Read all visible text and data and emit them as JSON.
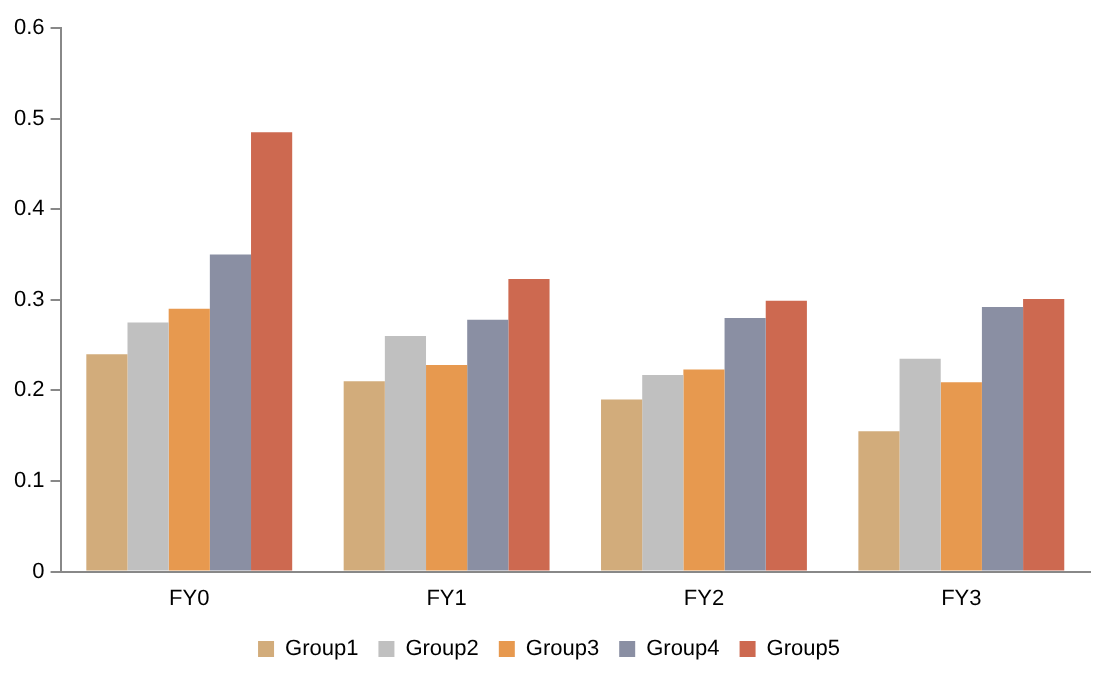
{
  "chart_data": {
    "type": "bar",
    "categories": [
      "FY0",
      "FY1",
      "FY2",
      "FY3"
    ],
    "series": [
      {
        "name": "Group1",
        "color": "#d2ac7b",
        "values": [
          0.24,
          0.21,
          0.19,
          0.155
        ]
      },
      {
        "name": "Group2",
        "color": "#c0c0c0",
        "values": [
          0.275,
          0.26,
          0.217,
          0.235
        ]
      },
      {
        "name": "Group3",
        "color": "#e7994f",
        "values": [
          0.29,
          0.228,
          0.223,
          0.209
        ]
      },
      {
        "name": "Group4",
        "color": "#8a8fa3",
        "values": [
          0.35,
          0.278,
          0.28,
          0.292
        ]
      },
      {
        "name": "Group5",
        "color": "#cd6950",
        "values": [
          0.485,
          0.323,
          0.299,
          0.301
        ]
      }
    ],
    "ylim": [
      0,
      0.6
    ],
    "yticks": [
      0,
      0.1,
      0.2,
      0.3,
      0.4,
      0.5,
      0.6
    ],
    "grid": false,
    "legend": "bottom"
  }
}
